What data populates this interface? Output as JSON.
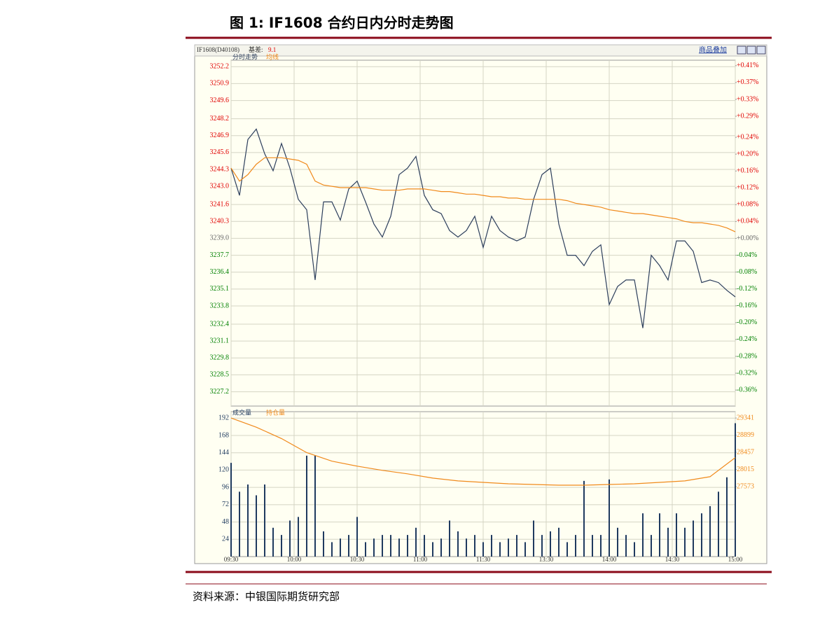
{
  "figure_title": "图 1: IF1608 合约日内分时走势图",
  "source": "资料来源：中银国际期货研究部",
  "toolbar_label": "商品叠加",
  "chart_data": [
    {
      "type": "line",
      "instrument": "IF1608(D40108)",
      "basis_label": "基差:",
      "basis_value": 9.1,
      "up_color": "#e00000",
      "down_color": "#008000",
      "flat_color": "#666666",
      "x": [
        0,
        4,
        8,
        12,
        16,
        20,
        24,
        28,
        32,
        36,
        40,
        44,
        48,
        52,
        56,
        60,
        64,
        68,
        72,
        76,
        80,
        84,
        88,
        92,
        96,
        100,
        104,
        108,
        112,
        116,
        120,
        124,
        128,
        132,
        136,
        140,
        144,
        148,
        152,
        156,
        160,
        164,
        168,
        172,
        176,
        180,
        184,
        188,
        192,
        196,
        200,
        204,
        208,
        212,
        216,
        220,
        224,
        228,
        232,
        236,
        240
      ],
      "xlim": [
        0,
        240
      ],
      "ylim": [
        3226.1,
        3252.7
      ],
      "yticks": [
        3252.2,
        3250.9,
        3249.6,
        3248.2,
        3246.9,
        3245.6,
        3244.3,
        {
          "value": 3243,
          "label": "3243.0"
        },
        3241.6,
        3240.3,
        {
          "value": 3239,
          "label": "3239.0"
        },
        3237.7,
        3236.4,
        3235.1,
        3233.8,
        3232.4,
        3231.1,
        3229.8,
        3228.5,
        3227.2
      ],
      "y2lim": [
        -0.398,
        0.423
      ],
      "y2ticks": [
        {
          "value": 0.41,
          "label": "+0.41%"
        },
        {
          "value": 0.37,
          "label": "+0.37%"
        },
        {
          "value": 0.33,
          "label": "+0.33%"
        },
        {
          "value": 0.29,
          "label": "+0.29%"
        },
        {
          "value": 0.24,
          "label": "+0.24%"
        },
        {
          "value": 0.2,
          "label": "+0.20%"
        },
        {
          "value": 0.16,
          "label": "+0.16%"
        },
        {
          "value": 0.12,
          "label": "+0.12%"
        },
        {
          "value": 0.08,
          "label": "+0.08%"
        },
        {
          "value": 0.04,
          "label": "+0.04%"
        },
        {
          "value": 0,
          "label": "+0.00%"
        },
        {
          "value": -0.04,
          "label": "-0.04%"
        },
        {
          "value": -0.08,
          "label": "-0.08%"
        },
        {
          "value": -0.12,
          "label": "-0.12%"
        },
        {
          "value": -0.16,
          "label": "-0.16%"
        },
        {
          "value": -0.2,
          "label": "-0.20%"
        },
        {
          "value": -0.24,
          "label": "-0.24%"
        },
        {
          "value": -0.28,
          "label": "-0.28%"
        },
        {
          "value": -0.32,
          "label": "-0.32%"
        },
        {
          "value": -0.36,
          "label": "-0.36%"
        }
      ],
      "grid": true,
      "series": [
        {
          "name": "分时走势",
          "color": "#2c3e5c",
          "values": [
            3244.4,
            3242.3,
            3246.6,
            3247.4,
            3245.5,
            3244.2,
            3246.3,
            3244.4,
            3242.0,
            3241.2,
            3235.8,
            3241.8,
            3241.8,
            3240.4,
            3242.8,
            3243.4,
            3241.8,
            3240.1,
            3239.1,
            3240.7,
            3243.9,
            3244.4,
            3245.3,
            3242.3,
            3241.2,
            3240.9,
            3239.6,
            3239.1,
            3239.6,
            3240.7,
            3238.3,
            3240.7,
            3239.6,
            3239.1,
            3238.8,
            3239.1,
            3242.0,
            3243.9,
            3244.4,
            3240.1,
            3237.7,
            3237.7,
            3236.9,
            3238.0,
            3238.5,
            3233.9,
            3235.3,
            3235.8,
            3235.8,
            3232.1,
            3237.7,
            3236.9,
            3235.8,
            3238.8,
            3238.8,
            3238.0,
            3235.6,
            3235.8,
            3235.6,
            3235.0,
            3234.5
          ]
        },
        {
          "name": "均线",
          "color": "#f08a1c",
          "values": [
            3244.4,
            3243.4,
            3243.9,
            3244.7,
            3245.2,
            3245.2,
            3245.2,
            3245.1,
            3245.0,
            3244.7,
            3243.4,
            3243.1,
            3243.0,
            3242.9,
            3242.9,
            3242.9,
            3242.9,
            3242.8,
            3242.7,
            3242.7,
            3242.7,
            3242.8,
            3242.8,
            3242.8,
            3242.7,
            3242.6,
            3242.6,
            3242.5,
            3242.4,
            3242.4,
            3242.3,
            3242.2,
            3242.2,
            3242.1,
            3242.1,
            3242.0,
            3242.0,
            3242.0,
            3242.0,
            3242.0,
            3241.9,
            3241.7,
            3241.6,
            3241.5,
            3241.4,
            3241.2,
            3241.1,
            3241.0,
            3240.9,
            3240.9,
            3240.8,
            3240.7,
            3240.6,
            3240.5,
            3240.3,
            3240.2,
            3240.2,
            3240.1,
            3240.0,
            3239.8,
            3239.5
          ]
        }
      ]
    },
    {
      "type": "bar",
      "x": [
        0,
        4,
        8,
        12,
        16,
        20,
        24,
        28,
        32,
        36,
        40,
        44,
        48,
        52,
        56,
        60,
        64,
        68,
        72,
        76,
        80,
        84,
        88,
        92,
        96,
        100,
        104,
        108,
        112,
        116,
        120,
        124,
        128,
        132,
        136,
        140,
        144,
        148,
        152,
        156,
        160,
        164,
        168,
        172,
        176,
        180,
        184,
        188,
        192,
        196,
        200,
        204,
        208,
        212,
        216,
        220,
        224,
        228,
        232,
        236,
        240
      ],
      "xlim": [
        0,
        240
      ],
      "xticks": [
        {
          "value": 0,
          "label": "09:30"
        },
        {
          "value": 30,
          "label": "10:00"
        },
        {
          "value": 60,
          "label": "10:30"
        },
        {
          "value": 90,
          "label": "11:00"
        },
        {
          "value": 120,
          "label": "11:30"
        },
        {
          "value": 150,
          "label": "13:30"
        },
        {
          "value": 180,
          "label": "14:00"
        },
        {
          "value": 210,
          "label": "14:30"
        },
        {
          "value": 240,
          "label": "15:00"
        }
      ],
      "ylim": [
        0,
        201
      ],
      "yticks": [
        24,
        48,
        72,
        96,
        120,
        144,
        168,
        192
      ],
      "y2lim": [
        25768,
        29505
      ],
      "y2ticks": [
        29341,
        28899,
        28457,
        28015,
        27573
      ],
      "grid": true,
      "series": [
        {
          "name": "成交量",
          "type": "bar",
          "color": "#1f3a5f",
          "values": [
            130,
            90,
            100,
            85,
            100,
            40,
            30,
            50,
            55,
            140,
            140,
            35,
            20,
            25,
            30,
            55,
            20,
            25,
            30,
            30,
            25,
            30,
            40,
            30,
            20,
            25,
            50,
            35,
            25,
            30,
            20,
            30,
            20,
            25,
            30,
            20,
            50,
            30,
            35,
            40,
            20,
            30,
            105,
            30,
            30,
            107,
            40,
            30,
            20,
            60,
            30,
            60,
            40,
            60,
            40,
            50,
            60,
            70,
            90,
            110,
            185
          ]
        },
        {
          "name": "持仓量",
          "type": "line",
          "axis": "y2",
          "color": "#f08a1c",
          "x": [
            0,
            12,
            24,
            36,
            48,
            60,
            72,
            84,
            96,
            108,
            120,
            132,
            144,
            156,
            168,
            180,
            192,
            204,
            216,
            228,
            240
          ],
          "values": [
            29341,
            29104,
            28812,
            28448,
            28229,
            28101,
            27992,
            27901,
            27791,
            27719,
            27682,
            27646,
            27627,
            27609,
            27609,
            27627,
            27646,
            27682,
            27719,
            27828,
            28320
          ]
        }
      ]
    }
  ]
}
